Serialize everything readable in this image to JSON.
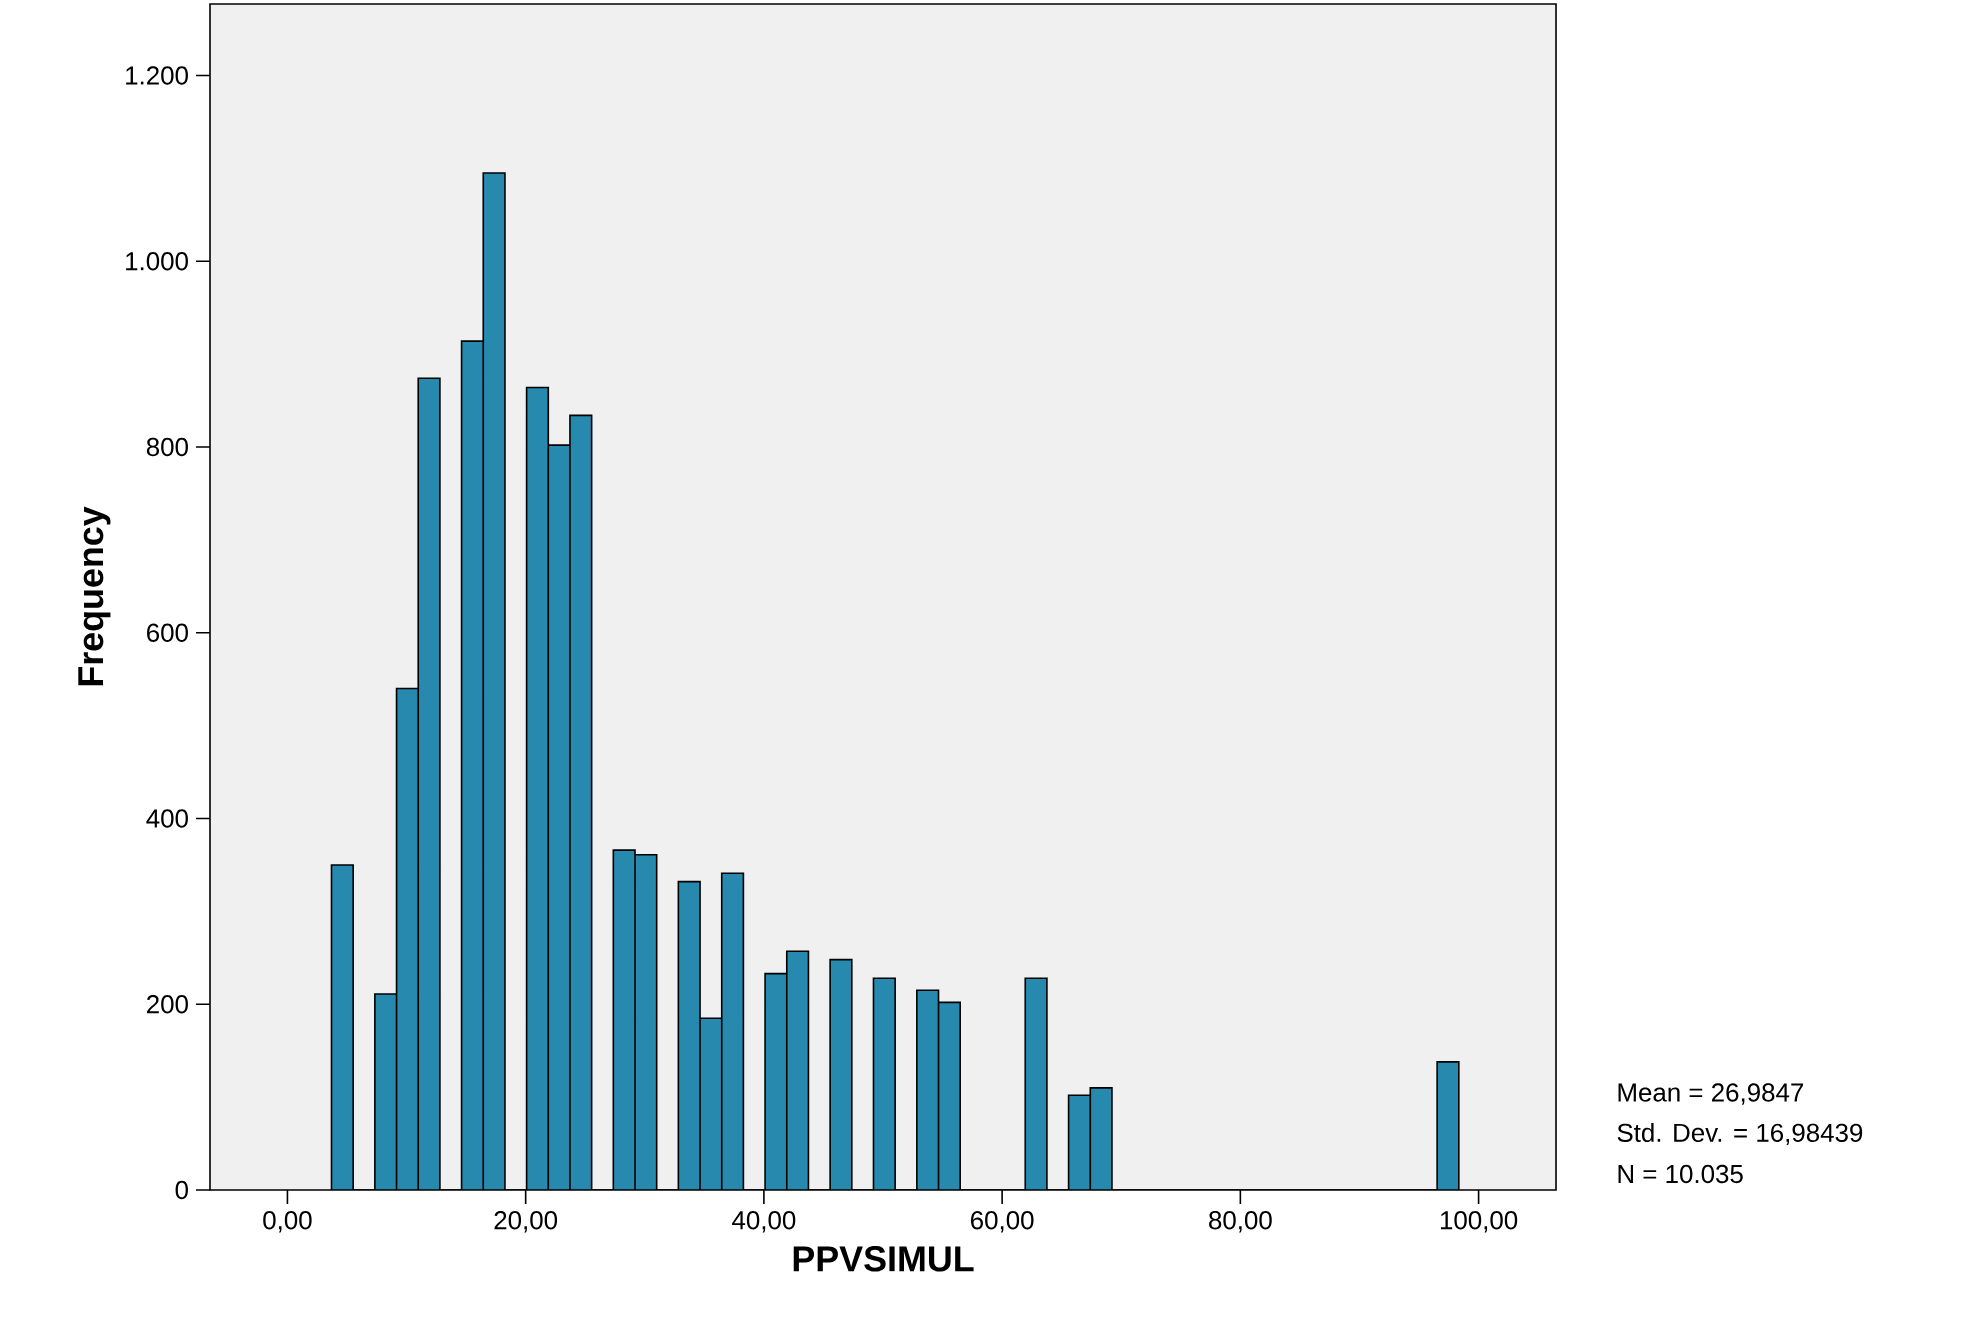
{
  "chart_data": {
    "type": "histogram",
    "xlabel": "PPVSIMUL",
    "ylabel": "Frequency",
    "color": "#2689ad",
    "bins": [
      3.7,
      5.52,
      7.34,
      9.16,
      10.98,
      12.8,
      14.62,
      16.44,
      18.26,
      20.08,
      21.9,
      23.72,
      25.54,
      27.36,
      29.18,
      31.0,
      32.82,
      34.64,
      36.46,
      38.28,
      40.1,
      41.92,
      43.74,
      45.56,
      47.38,
      49.2,
      51.02,
      52.84,
      54.66,
      56.48,
      58.3,
      60.12,
      61.94,
      63.76,
      65.58,
      67.4,
      69.22,
      71.04,
      72.86,
      74.68,
      76.5,
      78.32,
      80.14,
      81.96,
      83.78,
      85.6,
      87.42,
      89.24,
      91.06,
      92.88,
      94.7,
      96.52,
      98.34
    ],
    "values": [
      350,
      0,
      211,
      540,
      874,
      0,
      914,
      1095,
      0,
      864,
      802,
      834,
      0,
      366,
      361,
      0,
      332,
      185,
      341,
      0,
      233,
      257,
      0,
      248,
      0,
      228,
      0,
      215,
      202,
      0,
      0,
      0,
      228,
      0,
      102,
      110,
      0,
      0,
      0,
      0,
      0,
      0,
      0,
      0,
      0,
      0,
      0,
      0,
      0,
      0,
      0,
      138
    ],
    "xlim": [
      -6.5,
      106.5
    ],
    "ylim": [
      0,
      1277
    ],
    "xticks": [
      {
        "value": 0,
        "label": "0,00"
      },
      {
        "value": 20,
        "label": "20,00"
      },
      {
        "value": 40,
        "label": "40,00"
      },
      {
        "value": 60,
        "label": "60,00"
      },
      {
        "value": 80,
        "label": "80,00"
      },
      {
        "value": 100,
        "label": "100,00"
      }
    ],
    "yticks": [
      0,
      200,
      400,
      600,
      800,
      {
        "value": 1000,
        "label": "1.000"
      },
      {
        "value": 1200,
        "label": "1.200"
      }
    ],
    "annotations": [
      "Mean = 26,9847",
      "Std. Dev. = 16,98439",
      "N = 10.035"
    ]
  }
}
